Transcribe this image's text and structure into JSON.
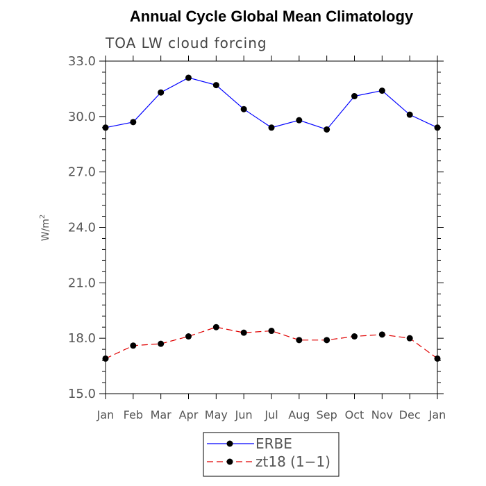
{
  "chart_data": {
    "type": "line",
    "title": "Annual Cycle Global Mean Climatology",
    "subtitle": "TOA LW cloud forcing",
    "ylabel": "W/m",
    "ylabel_sup": "2",
    "xlabel": "",
    "categories": [
      "Jan",
      "Feb",
      "Mar",
      "Apr",
      "May",
      "Jun",
      "Jul",
      "Aug",
      "Sep",
      "Oct",
      "Nov",
      "Dec",
      "Jan"
    ],
    "ylim": [
      15.0,
      33.0
    ],
    "yticks": [
      "15.0",
      "18.0",
      "21.0",
      "24.0",
      "27.0",
      "30.0",
      "33.0"
    ],
    "legend_position": "bottom-center",
    "series": [
      {
        "name": "ERBE",
        "color": "#0000ff",
        "dash": "solid",
        "values": [
          29.4,
          29.7,
          31.3,
          32.1,
          31.7,
          30.4,
          29.4,
          29.8,
          29.3,
          31.1,
          31.4,
          30.1,
          29.4
        ]
      },
      {
        "name": "zt18 (1−1)",
        "color": "#e00000",
        "dash": "dashed",
        "values": [
          16.9,
          17.6,
          17.7,
          18.1,
          18.6,
          18.3,
          18.4,
          17.9,
          17.9,
          18.1,
          18.2,
          18.0,
          16.9
        ]
      }
    ]
  }
}
